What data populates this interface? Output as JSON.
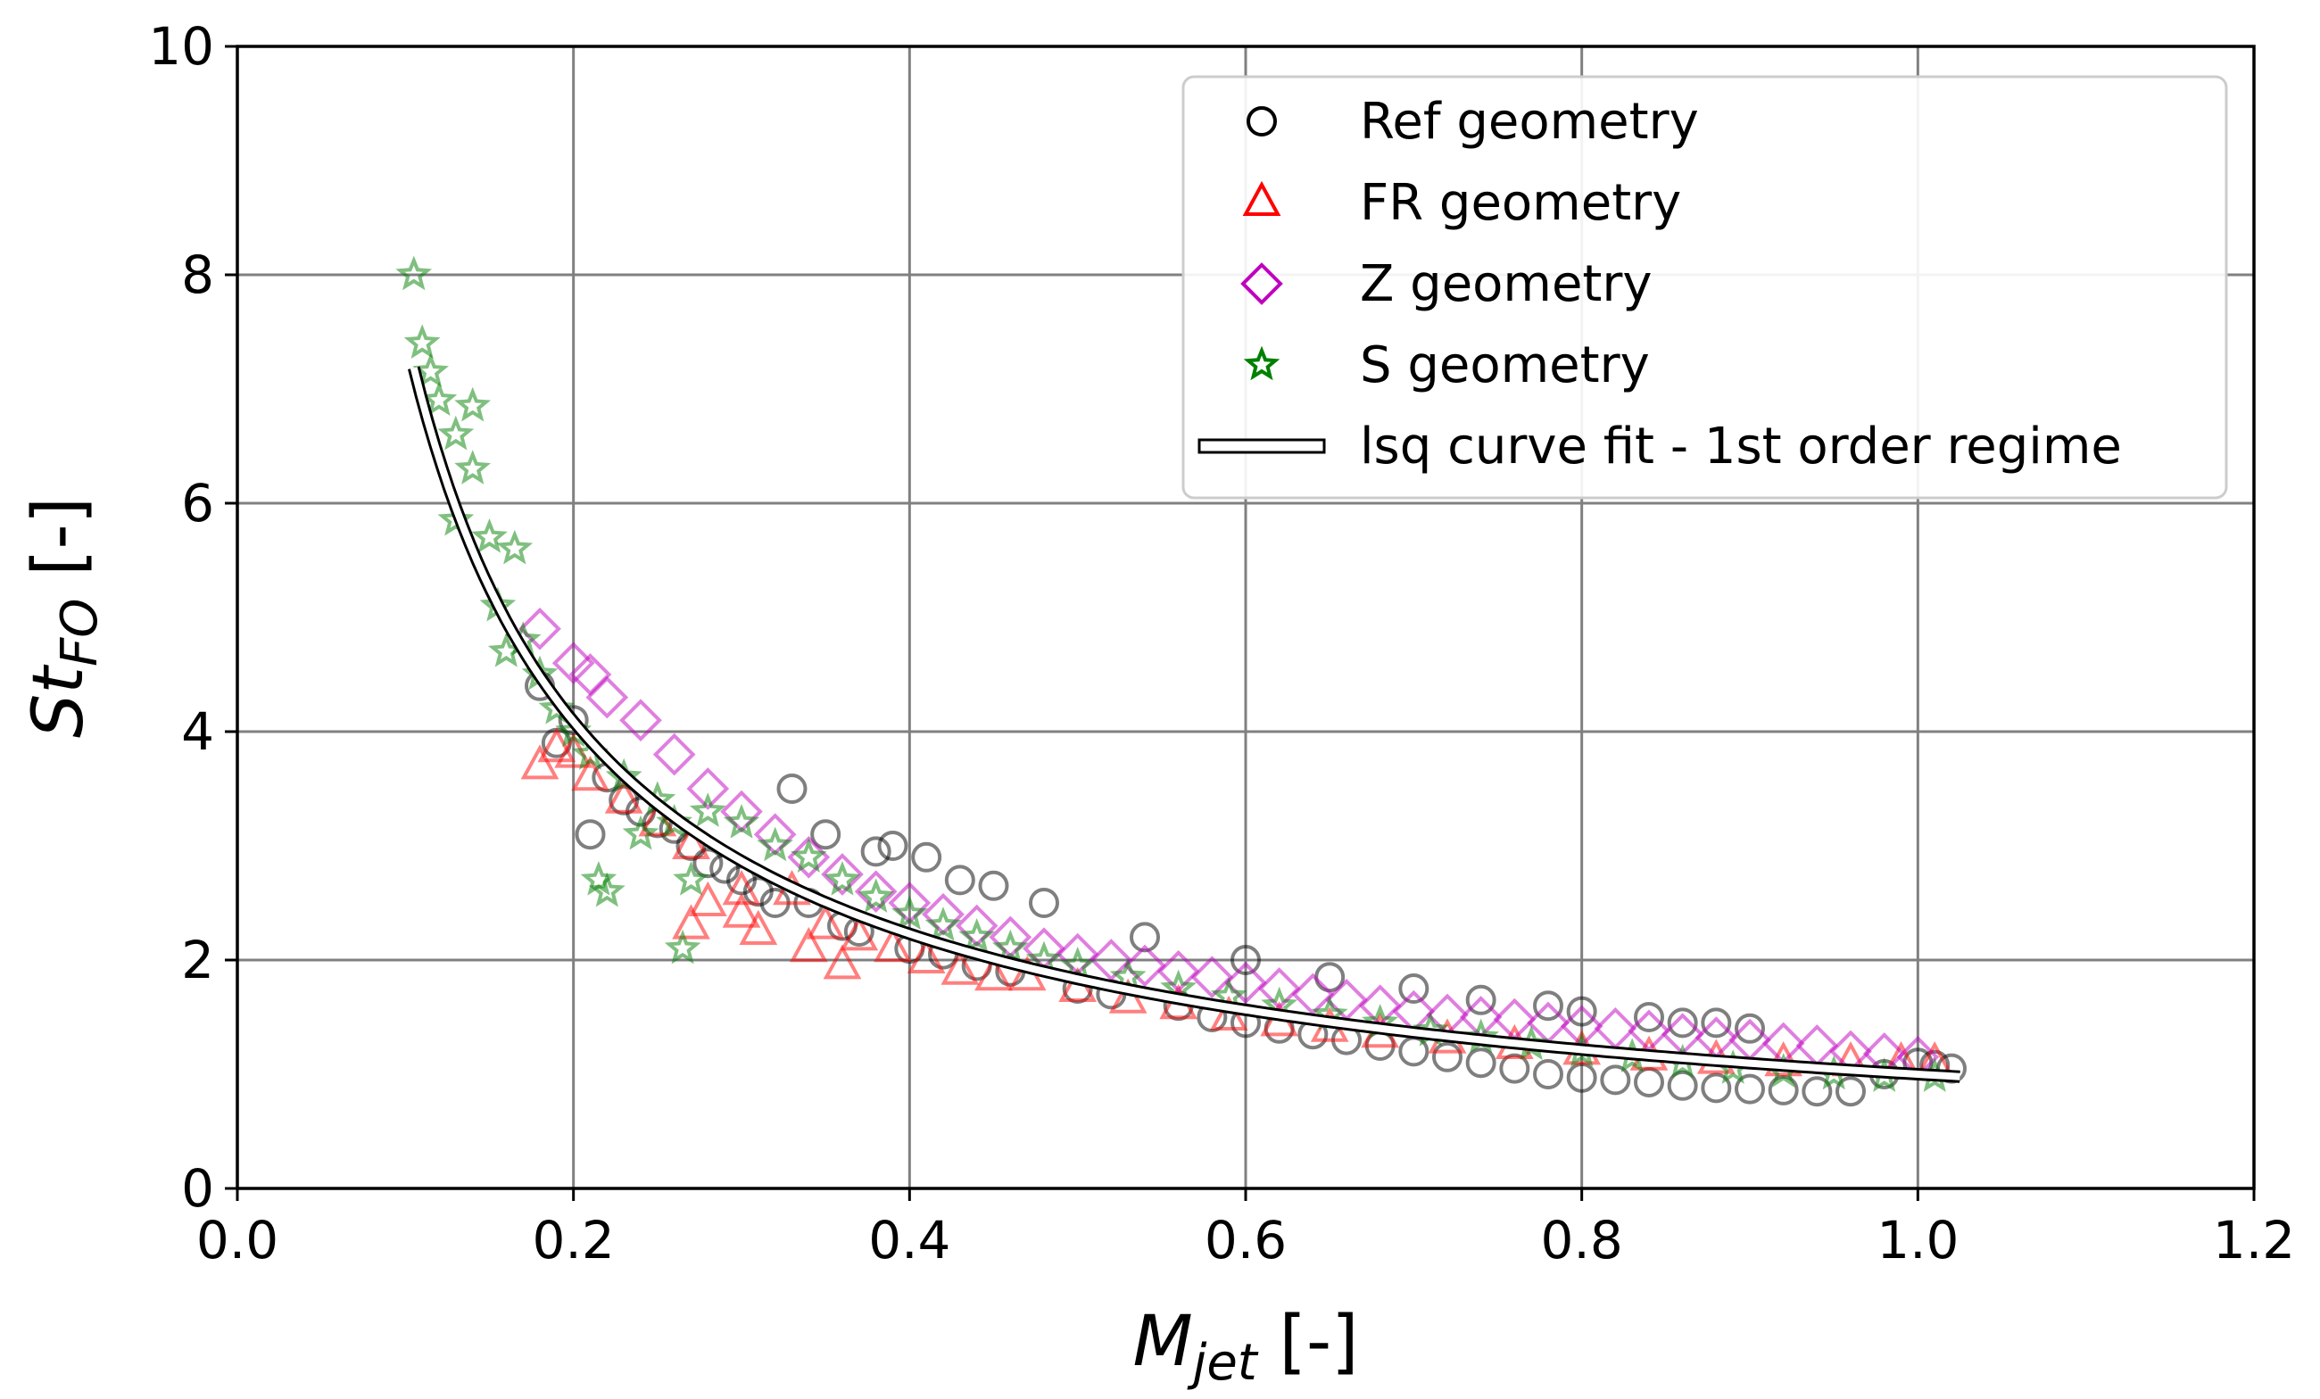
{
  "colors": {
    "ref": "#000000",
    "fr": "#ff0000",
    "z": "#bf00bf",
    "s": "#008000",
    "fit_fill": "#ffffff",
    "fit_edge": "#000000",
    "grid": "#808080"
  },
  "chart_data": {
    "type": "scatter",
    "xlim": [
      0.0,
      1.2
    ],
    "ylim": [
      0,
      10
    ],
    "xticks": [
      "0.0",
      "0.2",
      "0.4",
      "0.6",
      "0.8",
      "1.0",
      "1.2"
    ],
    "yticks": [
      "0",
      "2",
      "4",
      "6",
      "8",
      "10"
    ],
    "xlabel": {
      "main": "M",
      "sub": "jet",
      "suffix": " [-]"
    },
    "ylabel": {
      "main": "St",
      "sub": "FO",
      "suffix": " [-]"
    },
    "grid": true,
    "legend_position": "top-right",
    "legend": [
      {
        "label": "Ref geometry",
        "marker": "circle",
        "color": "#000000"
      },
      {
        "label": "FR geometry",
        "marker": "triangle",
        "color": "#ff0000"
      },
      {
        "label": "Z geometry",
        "marker": "diamond",
        "color": "#bf00bf"
      },
      {
        "label": "S geometry",
        "marker": "star",
        "color": "#008000"
      },
      {
        "label": "lsq curve fit - 1st order regime",
        "marker": "line",
        "color": "#000000"
      }
    ],
    "series": [
      {
        "name": "Ref geometry",
        "marker": "circle",
        "color": "#000000",
        "points": [
          [
            0.18,
            4.4
          ],
          [
            0.19,
            3.9
          ],
          [
            0.2,
            4.1
          ],
          [
            0.21,
            3.1
          ],
          [
            0.22,
            3.6
          ],
          [
            0.23,
            3.4
          ],
          [
            0.24,
            3.3
          ],
          [
            0.25,
            3.2
          ],
          [
            0.26,
            3.15
          ],
          [
            0.27,
            3.0
          ],
          [
            0.28,
            2.85
          ],
          [
            0.29,
            2.8
          ],
          [
            0.3,
            2.7
          ],
          [
            0.31,
            2.6
          ],
          [
            0.32,
            2.5
          ],
          [
            0.33,
            3.5
          ],
          [
            0.34,
            2.5
          ],
          [
            0.35,
            3.1
          ],
          [
            0.36,
            2.3
          ],
          [
            0.37,
            2.25
          ],
          [
            0.38,
            2.95
          ],
          [
            0.39,
            3.0
          ],
          [
            0.4,
            2.1
          ],
          [
            0.41,
            2.9
          ],
          [
            0.42,
            2.05
          ],
          [
            0.43,
            2.7
          ],
          [
            0.44,
            1.95
          ],
          [
            0.45,
            2.65
          ],
          [
            0.46,
            1.9
          ],
          [
            0.48,
            2.5
          ],
          [
            0.5,
            1.75
          ],
          [
            0.52,
            1.7
          ],
          [
            0.54,
            2.2
          ],
          [
            0.56,
            1.6
          ],
          [
            0.58,
            1.5
          ],
          [
            0.6,
            2.0
          ],
          [
            0.6,
            1.45
          ],
          [
            0.62,
            1.4
          ],
          [
            0.64,
            1.35
          ],
          [
            0.65,
            1.85
          ],
          [
            0.66,
            1.3
          ],
          [
            0.68,
            1.25
          ],
          [
            0.7,
            1.75
          ],
          [
            0.7,
            1.2
          ],
          [
            0.72,
            1.15
          ],
          [
            0.74,
            1.65
          ],
          [
            0.74,
            1.1
          ],
          [
            0.76,
            1.05
          ],
          [
            0.78,
            1.6
          ],
          [
            0.78,
            1.0
          ],
          [
            0.8,
            1.55
          ],
          [
            0.8,
            0.97
          ],
          [
            0.82,
            0.95
          ],
          [
            0.84,
            1.5
          ],
          [
            0.84,
            0.93
          ],
          [
            0.86,
            1.45
          ],
          [
            0.86,
            0.9
          ],
          [
            0.88,
            1.45
          ],
          [
            0.88,
            0.88
          ],
          [
            0.9,
            1.4
          ],
          [
            0.9,
            0.87
          ],
          [
            0.92,
            0.86
          ],
          [
            0.94,
            0.85
          ],
          [
            0.96,
            0.85
          ],
          [
            0.98,
            1.0
          ],
          [
            1.0,
            1.1
          ],
          [
            1.01,
            1.08
          ],
          [
            1.02,
            1.05
          ]
        ]
      },
      {
        "name": "FR geometry",
        "marker": "triangle",
        "color": "#ff0000",
        "points": [
          [
            0.18,
            3.7
          ],
          [
            0.19,
            3.85
          ],
          [
            0.2,
            3.8
          ],
          [
            0.21,
            3.6
          ],
          [
            0.23,
            3.4
          ],
          [
            0.25,
            3.2
          ],
          [
            0.27,
            3.0
          ],
          [
            0.27,
            2.3
          ],
          [
            0.28,
            2.5
          ],
          [
            0.3,
            2.6
          ],
          [
            0.3,
            2.4
          ],
          [
            0.31,
            2.25
          ],
          [
            0.33,
            2.6
          ],
          [
            0.34,
            2.1
          ],
          [
            0.35,
            2.3
          ],
          [
            0.36,
            1.95
          ],
          [
            0.37,
            2.2
          ],
          [
            0.39,
            2.1
          ],
          [
            0.41,
            2.0
          ],
          [
            0.43,
            1.9
          ],
          [
            0.45,
            1.85
          ],
          [
            0.47,
            1.85
          ],
          [
            0.5,
            1.75
          ],
          [
            0.53,
            1.65
          ],
          [
            0.56,
            1.6
          ],
          [
            0.59,
            1.5
          ],
          [
            0.62,
            1.45
          ],
          [
            0.65,
            1.4
          ],
          [
            0.68,
            1.35
          ],
          [
            0.72,
            1.3
          ],
          [
            0.76,
            1.25
          ],
          [
            0.8,
            1.2
          ],
          [
            0.84,
            1.15
          ],
          [
            0.88,
            1.12
          ],
          [
            0.92,
            1.1
          ],
          [
            0.96,
            1.1
          ],
          [
            0.99,
            1.1
          ],
          [
            1.01,
            1.1
          ]
        ]
      },
      {
        "name": "Z geometry",
        "marker": "diamond",
        "color": "#bf00bf",
        "points": [
          [
            0.18,
            4.9
          ],
          [
            0.2,
            4.6
          ],
          [
            0.21,
            4.5
          ],
          [
            0.22,
            4.3
          ],
          [
            0.24,
            4.1
          ],
          [
            0.26,
            3.8
          ],
          [
            0.28,
            3.5
          ],
          [
            0.3,
            3.3
          ],
          [
            0.32,
            3.1
          ],
          [
            0.34,
            2.9
          ],
          [
            0.36,
            2.75
          ],
          [
            0.38,
            2.6
          ],
          [
            0.4,
            2.5
          ],
          [
            0.42,
            2.4
          ],
          [
            0.44,
            2.3
          ],
          [
            0.46,
            2.2
          ],
          [
            0.48,
            2.1
          ],
          [
            0.5,
            2.05
          ],
          [
            0.52,
            2.0
          ],
          [
            0.54,
            1.95
          ],
          [
            0.56,
            1.9
          ],
          [
            0.58,
            1.85
          ],
          [
            0.6,
            1.8
          ],
          [
            0.62,
            1.75
          ],
          [
            0.64,
            1.7
          ],
          [
            0.66,
            1.65
          ],
          [
            0.68,
            1.6
          ],
          [
            0.7,
            1.55
          ],
          [
            0.72,
            1.52
          ],
          [
            0.74,
            1.5
          ],
          [
            0.76,
            1.48
          ],
          [
            0.78,
            1.45
          ],
          [
            0.8,
            1.42
          ],
          [
            0.82,
            1.4
          ],
          [
            0.84,
            1.38
          ],
          [
            0.86,
            1.35
          ],
          [
            0.88,
            1.32
          ],
          [
            0.9,
            1.3
          ],
          [
            0.92,
            1.27
          ],
          [
            0.94,
            1.25
          ],
          [
            0.96,
            1.2
          ],
          [
            0.98,
            1.18
          ],
          [
            1.0,
            1.15
          ]
        ]
      },
      {
        "name": "S geometry",
        "marker": "star",
        "color": "#008000",
        "points": [
          [
            0.105,
            8.0
          ],
          [
            0.11,
            7.4
          ],
          [
            0.115,
            7.15
          ],
          [
            0.12,
            6.9
          ],
          [
            0.13,
            6.6
          ],
          [
            0.13,
            5.85
          ],
          [
            0.14,
            6.85
          ],
          [
            0.14,
            6.3
          ],
          [
            0.15,
            5.7
          ],
          [
            0.155,
            5.1
          ],
          [
            0.16,
            4.7
          ],
          [
            0.165,
            5.6
          ],
          [
            0.17,
            4.8
          ],
          [
            0.18,
            4.5
          ],
          [
            0.19,
            4.2
          ],
          [
            0.2,
            4.0
          ],
          [
            0.21,
            3.8
          ],
          [
            0.215,
            2.7
          ],
          [
            0.22,
            2.6
          ],
          [
            0.23,
            3.6
          ],
          [
            0.24,
            3.1
          ],
          [
            0.25,
            3.4
          ],
          [
            0.26,
            3.2
          ],
          [
            0.265,
            2.1
          ],
          [
            0.27,
            2.7
          ],
          [
            0.28,
            3.3
          ],
          [
            0.3,
            3.2
          ],
          [
            0.32,
            3.0
          ],
          [
            0.34,
            2.9
          ],
          [
            0.36,
            2.7
          ],
          [
            0.38,
            2.55
          ],
          [
            0.4,
            2.4
          ],
          [
            0.42,
            2.3
          ],
          [
            0.44,
            2.2
          ],
          [
            0.46,
            2.1
          ],
          [
            0.48,
            2.0
          ],
          [
            0.5,
            1.95
          ],
          [
            0.53,
            1.85
          ],
          [
            0.56,
            1.75
          ],
          [
            0.59,
            1.68
          ],
          [
            0.62,
            1.6
          ],
          [
            0.65,
            1.52
          ],
          [
            0.68,
            1.45
          ],
          [
            0.71,
            1.38
          ],
          [
            0.74,
            1.32
          ],
          [
            0.77,
            1.26
          ],
          [
            0.8,
            1.2
          ],
          [
            0.83,
            1.15
          ],
          [
            0.86,
            1.1
          ],
          [
            0.89,
            1.05
          ],
          [
            0.92,
            1.02
          ],
          [
            0.95,
            1.0
          ],
          [
            0.98,
            0.98
          ],
          [
            1.01,
            0.98
          ]
        ]
      },
      {
        "name": "lsq curve fit - 1st order regime",
        "marker": "line",
        "color": "#000000",
        "curve": "power",
        "coef": 1.0,
        "exponent": -0.875,
        "x_range": [
          0.105,
          1.025
        ]
      }
    ]
  }
}
